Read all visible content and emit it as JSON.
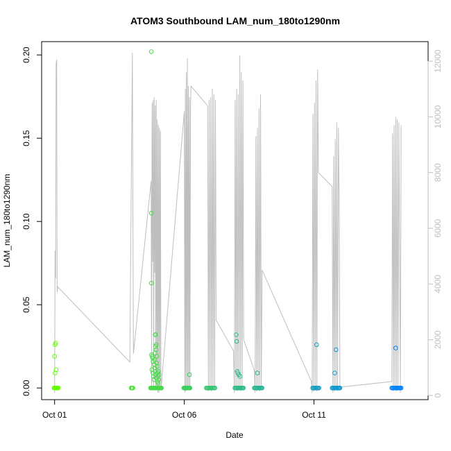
{
  "chart_data": {
    "type": "scatter",
    "title": "ATOM3 Southbound LAM_num_180to1290nm",
    "xlabel": "Date",
    "ylabel": "LAM_num_180to1290nm",
    "x_ticks": [
      {
        "label": "Oct 01",
        "value": 1.0
      },
      {
        "label": "Oct 06",
        "value": 6.0
      },
      {
        "label": "Oct 11",
        "value": 11.0
      }
    ],
    "y_ticks": [
      "0.00",
      "0.05",
      "0.10",
      "0.15",
      "0.20"
    ],
    "y2_ticks": [
      "0",
      "2000",
      "4000",
      "6000",
      "8000",
      "10000",
      "12000"
    ],
    "xlim": [
      0.5,
      15.4
    ],
    "ylim": [
      -0.007,
      0.208
    ],
    "y2lim": [
      -150,
      12700
    ],
    "grid": false,
    "colors": {
      "points_start": "#66ff00",
      "points_end": "#0080ff",
      "line": "#bebebe",
      "right_axis": "#bebebe"
    },
    "series": [
      {
        "axis": "left",
        "mark": "circle",
        "points": [
          [
            0.98,
            0.0
          ],
          [
            1.0,
            0.0
          ],
          [
            1.02,
            0.0
          ],
          [
            1.04,
            0.0
          ],
          [
            1.06,
            0.0
          ],
          [
            1.08,
            0.0
          ],
          [
            1.1,
            0.0
          ],
          [
            1.12,
            0.0
          ],
          [
            1.14,
            0.0
          ],
          [
            1.02,
            0.026
          ],
          [
            1.04,
            0.027
          ],
          [
            1.0,
            0.019
          ],
          [
            1.02,
            0.009
          ],
          [
            1.06,
            0.011
          ],
          [
            3.95,
            0.0
          ],
          [
            3.98,
            0.0
          ],
          [
            4.0,
            0.0
          ],
          [
            4.02,
            0.0
          ],
          [
            4.7,
            0.0
          ],
          [
            4.72,
            0.0
          ],
          [
            4.74,
            0.0
          ],
          [
            4.76,
            0.0
          ],
          [
            4.78,
            0.0
          ],
          [
            4.8,
            0.0
          ],
          [
            4.82,
            0.0
          ],
          [
            4.84,
            0.0
          ],
          [
            4.86,
            0.0
          ],
          [
            4.88,
            0.0
          ],
          [
            4.9,
            0.0
          ],
          [
            4.92,
            0.0
          ],
          [
            4.94,
            0.0
          ],
          [
            4.96,
            0.0
          ],
          [
            4.98,
            0.0
          ],
          [
            5.0,
            0.0
          ],
          [
            5.02,
            0.0
          ],
          [
            5.04,
            0.0
          ],
          [
            5.06,
            0.0
          ],
          [
            5.08,
            0.0
          ],
          [
            5.1,
            0.0
          ],
          [
            5.12,
            0.0
          ],
          [
            4.73,
            0.202
          ],
          [
            4.73,
            0.105
          ],
          [
            4.73,
            0.063
          ],
          [
            4.74,
            0.02
          ],
          [
            4.76,
            0.019
          ],
          [
            4.78,
            0.018
          ],
          [
            4.8,
            0.016
          ],
          [
            4.84,
            0.014
          ],
          [
            4.86,
            0.012
          ],
          [
            4.88,
            0.01
          ],
          [
            4.9,
            0.008
          ],
          [
            4.92,
            0.006
          ],
          [
            4.75,
            0.011
          ],
          [
            4.79,
            0.009
          ],
          [
            4.81,
            0.007
          ],
          [
            4.83,
            0.005
          ],
          [
            4.85,
            0.017
          ],
          [
            4.87,
            0.021
          ],
          [
            4.89,
            0.025
          ],
          [
            4.91,
            0.023
          ],
          [
            4.93,
            0.015
          ],
          [
            4.95,
            0.013
          ],
          [
            4.97,
            0.009
          ],
          [
            4.99,
            0.007
          ],
          [
            5.01,
            0.005
          ],
          [
            5.03,
            0.008
          ],
          [
            4.88,
            0.032
          ],
          [
            4.9,
            0.032
          ],
          [
            4.92,
            0.026
          ],
          [
            4.94,
            0.019
          ],
          [
            4.96,
            0.004
          ],
          [
            4.98,
            0.003
          ],
          [
            5.0,
            0.01
          ],
          [
            5.98,
            0.0
          ],
          [
            6.0,
            0.0
          ],
          [
            6.02,
            0.0
          ],
          [
            6.04,
            0.0
          ],
          [
            6.06,
            0.0
          ],
          [
            6.08,
            0.0
          ],
          [
            6.1,
            0.0
          ],
          [
            6.12,
            0.0
          ],
          [
            6.14,
            0.0
          ],
          [
            6.16,
            0.0
          ],
          [
            6.18,
            0.0
          ],
          [
            6.2,
            0.0
          ],
          [
            6.22,
            0.0
          ],
          [
            6.2,
            0.008
          ],
          [
            6.85,
            0.0
          ],
          [
            6.88,
            0.0
          ],
          [
            6.91,
            0.0
          ],
          [
            6.94,
            0.0
          ],
          [
            6.97,
            0.0
          ],
          [
            7.0,
            0.0
          ],
          [
            7.03,
            0.0
          ],
          [
            7.06,
            0.0
          ],
          [
            7.09,
            0.0
          ],
          [
            7.12,
            0.0
          ],
          [
            7.15,
            0.0
          ],
          [
            7.18,
            0.0
          ],
          [
            7.95,
            0.0
          ],
          [
            7.98,
            0.0
          ],
          [
            8.01,
            0.0
          ],
          [
            8.04,
            0.0
          ],
          [
            8.07,
            0.0
          ],
          [
            8.1,
            0.0
          ],
          [
            8.13,
            0.0
          ],
          [
            8.16,
            0.0
          ],
          [
            8.19,
            0.0
          ],
          [
            8.22,
            0.0
          ],
          [
            8.25,
            0.0
          ],
          [
            8.28,
            0.0
          ],
          [
            8.0,
            0.032
          ],
          [
            8.02,
            0.028
          ],
          [
            8.04,
            0.01
          ],
          [
            8.06,
            0.009
          ],
          [
            8.1,
            0.008
          ],
          [
            8.15,
            0.007
          ],
          [
            8.7,
            0.0
          ],
          [
            8.73,
            0.0
          ],
          [
            8.76,
            0.0
          ],
          [
            8.79,
            0.0
          ],
          [
            8.82,
            0.0
          ],
          [
            8.85,
            0.0
          ],
          [
            8.88,
            0.0
          ],
          [
            8.91,
            0.0
          ],
          [
            8.94,
            0.0
          ],
          [
            8.97,
            0.0
          ],
          [
            9.0,
            0.0
          ],
          [
            8.82,
            0.009
          ],
          [
            10.95,
            0.0
          ],
          [
            10.98,
            0.0
          ],
          [
            11.01,
            0.0
          ],
          [
            11.04,
            0.0
          ],
          [
            11.07,
            0.0
          ],
          [
            11.1,
            0.0
          ],
          [
            11.13,
            0.0
          ],
          [
            11.16,
            0.0
          ],
          [
            11.19,
            0.0
          ],
          [
            11.1,
            0.026
          ],
          [
            11.7,
            0.0
          ],
          [
            11.73,
            0.0
          ],
          [
            11.76,
            0.0
          ],
          [
            11.79,
            0.0
          ],
          [
            11.82,
            0.0
          ],
          [
            11.85,
            0.0
          ],
          [
            11.88,
            0.0
          ],
          [
            11.91,
            0.0
          ],
          [
            11.94,
            0.0
          ],
          [
            11.97,
            0.0
          ],
          [
            12.0,
            0.0
          ],
          [
            11.85,
            0.023
          ],
          [
            11.8,
            0.009
          ],
          [
            14.0,
            0.0
          ],
          [
            14.03,
            0.0
          ],
          [
            14.06,
            0.0
          ],
          [
            14.09,
            0.0
          ],
          [
            14.12,
            0.0
          ],
          [
            14.15,
            0.0
          ],
          [
            14.18,
            0.0
          ],
          [
            14.21,
            0.0
          ],
          [
            14.24,
            0.0
          ],
          [
            14.27,
            0.0
          ],
          [
            14.3,
            0.0
          ],
          [
            14.33,
            0.0
          ],
          [
            14.36,
            0.0
          ],
          [
            14.15,
            0.024
          ]
        ]
      },
      {
        "axis": "right",
        "mark": "line",
        "points": [
          [
            1.0,
            100
          ],
          [
            1.02,
            5200
          ],
          [
            1.04,
            4200
          ],
          [
            1.06,
            11900
          ],
          [
            1.08,
            12050
          ],
          [
            1.1,
            3700
          ],
          [
            1.12,
            3900
          ],
          [
            3.9,
            1200
          ],
          [
            4.0,
            12300
          ],
          [
            4.02,
            6100
          ],
          [
            4.04,
            1500
          ],
          [
            4.72,
            7700
          ],
          [
            4.74,
            200
          ],
          [
            4.76,
            10500
          ],
          [
            4.78,
            4800
          ],
          [
            4.8,
            10600
          ],
          [
            4.82,
            200
          ],
          [
            4.84,
            10700
          ],
          [
            4.86,
            4400
          ],
          [
            4.88,
            10400
          ],
          [
            4.9,
            300
          ],
          [
            4.92,
            10600
          ],
          [
            4.94,
            200
          ],
          [
            4.96,
            9900
          ],
          [
            4.98,
            100
          ],
          [
            5.0,
            9700
          ],
          [
            5.02,
            100
          ],
          [
            5.04,
            9600
          ],
          [
            5.06,
            200
          ],
          [
            5.08,
            9500
          ],
          [
            5.1,
            200
          ],
          [
            6.0,
            10200
          ],
          [
            6.02,
            100
          ],
          [
            6.04,
            11000
          ],
          [
            6.06,
            150
          ],
          [
            6.08,
            11600
          ],
          [
            6.1,
            200
          ],
          [
            6.12,
            12100
          ],
          [
            6.14,
            300
          ],
          [
            6.16,
            11100
          ],
          [
            6.18,
            200
          ],
          [
            6.2,
            10700
          ],
          [
            6.22,
            300
          ],
          [
            6.24,
            10400
          ],
          [
            6.26,
            11100
          ],
          [
            6.9,
            10400
          ],
          [
            6.93,
            150
          ],
          [
            6.96,
            10600
          ],
          [
            6.99,
            200
          ],
          [
            7.02,
            10700
          ],
          [
            7.05,
            150
          ],
          [
            7.08,
            11000
          ],
          [
            7.11,
            200
          ],
          [
            7.14,
            10800
          ],
          [
            7.17,
            300
          ],
          [
            7.2,
            10600
          ],
          [
            7.23,
            2700
          ],
          [
            7.9,
            1600
          ],
          [
            7.93,
            100
          ],
          [
            7.96,
            10600
          ],
          [
            7.99,
            200
          ],
          [
            8.02,
            11000
          ],
          [
            8.05,
            150
          ],
          [
            8.08,
            10800
          ],
          [
            8.11,
            200
          ],
          [
            8.14,
            12200
          ],
          [
            8.17,
            150
          ],
          [
            8.2,
            11600
          ],
          [
            8.23,
            200
          ],
          [
            8.26,
            11300
          ],
          [
            8.29,
            2000
          ],
          [
            8.7,
            900
          ],
          [
            8.73,
            100
          ],
          [
            8.76,
            9300
          ],
          [
            8.79,
            150
          ],
          [
            8.82,
            9600
          ],
          [
            8.85,
            200
          ],
          [
            8.88,
            10300
          ],
          [
            8.91,
            150
          ],
          [
            8.94,
            10800
          ],
          [
            8.97,
            200
          ],
          [
            9.0,
            4500
          ],
          [
            10.9,
            500
          ],
          [
            10.93,
            100
          ],
          [
            10.96,
            10100
          ],
          [
            10.99,
            150
          ],
          [
            11.02,
            10500
          ],
          [
            11.05,
            200
          ],
          [
            11.08,
            11300
          ],
          [
            11.11,
            150
          ],
          [
            11.14,
            11700
          ],
          [
            11.17,
            8000
          ],
          [
            11.7,
            7500
          ],
          [
            11.73,
            100
          ],
          [
            11.76,
            8600
          ],
          [
            11.79,
            150
          ],
          [
            11.82,
            9200
          ],
          [
            11.85,
            200
          ],
          [
            11.88,
            9800
          ],
          [
            11.91,
            150
          ],
          [
            11.94,
            9600
          ],
          [
            11.97,
            7200
          ],
          [
            12.0,
            300
          ],
          [
            14.0,
            500
          ],
          [
            14.03,
            9400
          ],
          [
            14.06,
            150
          ],
          [
            14.09,
            9700
          ],
          [
            14.12,
            200
          ],
          [
            14.15,
            10000
          ],
          [
            14.18,
            150
          ],
          [
            14.21,
            9900
          ],
          [
            14.24,
            200
          ],
          [
            14.27,
            9800
          ],
          [
            14.3,
            5100
          ],
          [
            14.33,
            100
          ],
          [
            14.36,
            9700
          ]
        ]
      }
    ]
  }
}
